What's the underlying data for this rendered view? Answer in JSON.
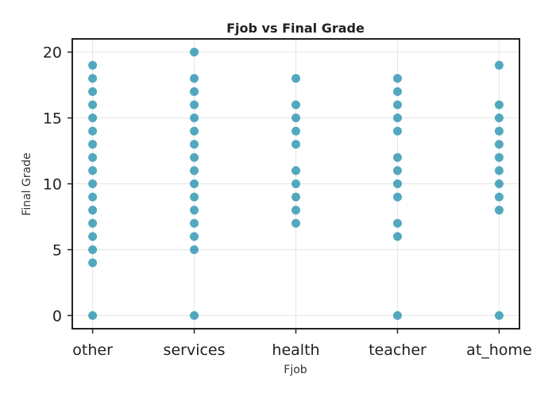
{
  "chart_data": {
    "type": "scatter",
    "title": "Fjob vs Final Grade",
    "xlabel": "Fjob",
    "ylabel": "Final Grade",
    "categories": [
      "other",
      "services",
      "health",
      "teacher",
      "at_home"
    ],
    "ylim": [
      -1,
      21
    ],
    "yticks": [
      0,
      5,
      10,
      15,
      20
    ],
    "grid": true,
    "colors": {
      "point": "#1a8caa"
    },
    "points": [
      {
        "category": "other",
        "values": [
          0,
          4,
          5,
          6,
          7,
          8,
          9,
          10,
          11,
          12,
          13,
          14,
          15,
          16,
          17,
          18,
          19
        ]
      },
      {
        "category": "services",
        "values": [
          0,
          5,
          6,
          7,
          8,
          9,
          10,
          11,
          12,
          13,
          14,
          15,
          16,
          17,
          18,
          20
        ]
      },
      {
        "category": "health",
        "values": [
          7,
          8,
          9,
          10,
          11,
          13,
          14,
          15,
          16,
          18
        ]
      },
      {
        "category": "teacher",
        "values": [
          0,
          6,
          7,
          9,
          10,
          11,
          12,
          14,
          15,
          16,
          17,
          18
        ]
      },
      {
        "category": "at_home",
        "values": [
          0,
          8,
          9,
          10,
          11,
          12,
          13,
          14,
          15,
          16,
          19
        ]
      }
    ]
  }
}
